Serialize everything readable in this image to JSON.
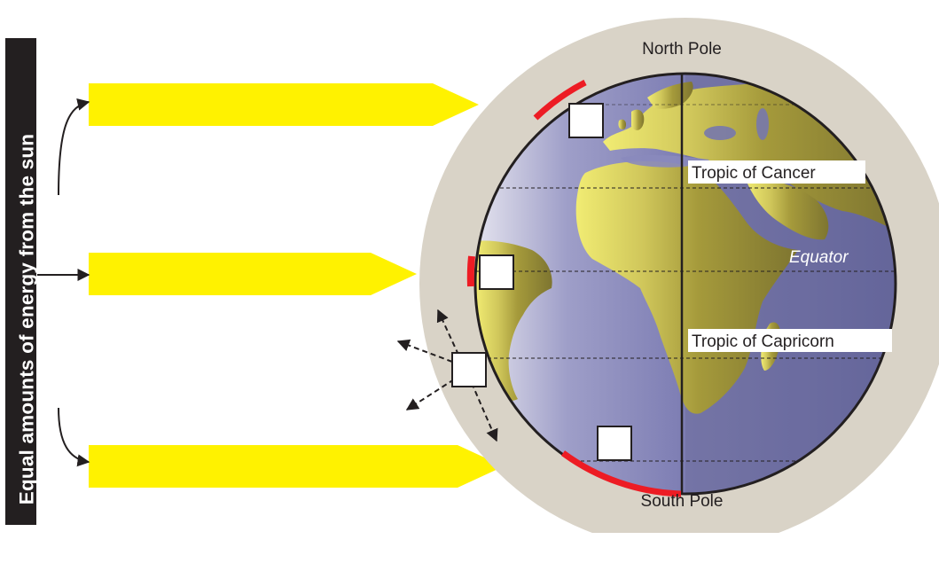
{
  "side_label": "Equal amounts of energy from the sun",
  "labels": {
    "north_pole": "North Pole",
    "south_pole": "South Pole",
    "tropic_of_cancer": "Tropic of Cancer",
    "equator": "Equator",
    "tropic_of_capricorn": "Tropic of Capricorn"
  },
  "colors": {
    "sun_ray": "#fff200",
    "atmosphere": "#d9d3c7",
    "ocean": "#7778ad",
    "land": "#a59a3b",
    "highlight": "#ed1c24",
    "banner": "#231f20"
  }
}
